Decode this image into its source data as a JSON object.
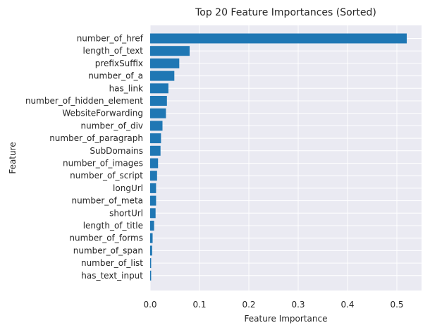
{
  "chart_data": {
    "type": "bar",
    "orientation": "horizontal",
    "title": "Top 20 Feature Importances (Sorted)",
    "xlabel": "Feature Importance",
    "ylabel": "Feature",
    "xlim": [
      0,
      0.55
    ],
    "xticks": [
      0.0,
      0.1,
      0.2,
      0.3,
      0.4,
      0.5
    ],
    "xtick_labels": [
      "0.0",
      "0.1",
      "0.2",
      "0.3",
      "0.4",
      "0.5"
    ],
    "grid": true,
    "color": "#1f77b4",
    "categories": [
      "number_of_href",
      "length_of_text",
      "prefixSuffix",
      "number_of_a",
      "has_link",
      "number_of_hidden_element",
      "WebsiteForwarding",
      "number_of_div",
      "number_of_paragraph",
      "SubDomains",
      "number_of_images",
      "number_of_script",
      "longUrl",
      "number_of_meta",
      "shortUrl",
      "length_of_title",
      "number_of_forms",
      "number_of_span",
      "number_of_list",
      "has_text_input"
    ],
    "values": [
      0.52,
      0.08,
      0.059,
      0.049,
      0.037,
      0.034,
      0.032,
      0.025,
      0.022,
      0.021,
      0.016,
      0.014,
      0.012,
      0.012,
      0.011,
      0.008,
      0.005,
      0.004,
      0.002,
      0.002
    ]
  }
}
